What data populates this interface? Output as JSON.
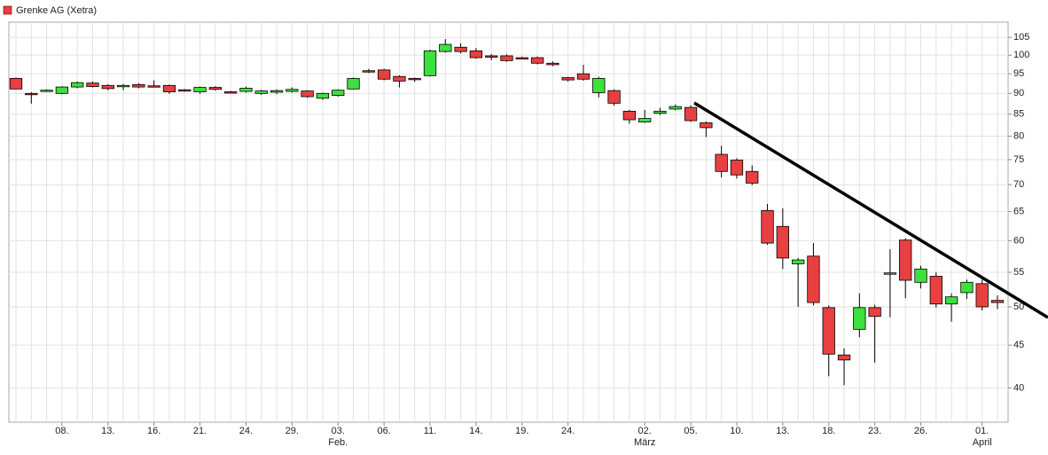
{
  "chart_data": {
    "type": "candlestick",
    "categories": [
      null,
      null,
      null,
      "08.",
      null,
      null,
      "13.",
      null,
      null,
      "16.",
      null,
      null,
      "21.",
      null,
      null,
      "24.",
      null,
      null,
      "29.",
      null,
      null,
      "03.",
      null,
      null,
      "06.",
      null,
      null,
      "11.",
      null,
      null,
      "14.",
      null,
      null,
      "19.",
      null,
      null,
      "24.",
      null,
      null,
      null,
      null,
      "02.",
      null,
      null,
      "05.",
      null,
      null,
      "10.",
      null,
      null,
      "13.",
      null,
      null,
      "18.",
      null,
      null,
      "23.",
      null,
      null,
      "26.",
      null,
      null,
      null,
      "01.",
      null
    ],
    "month_labels": [
      {
        "category": 21,
        "label": "Feb."
      },
      {
        "category": 41,
        "label": "März"
      },
      {
        "category": 63,
        "label": "April"
      }
    ],
    "series": [
      {
        "name": "Grenke AG (Xetra)",
        "color": "#e84040",
        "up_color": "#3ee03e",
        "open": [
          93.8,
          90.0,
          90.6,
          90.0,
          91.6,
          92.6,
          92.0,
          91.7,
          92.2,
          91.9,
          92.0,
          90.9,
          90.4,
          91.5,
          90.4,
          90.5,
          90.0,
          90.3,
          90.5,
          90.6,
          88.8,
          89.5,
          91.1,
          95.8,
          96.0,
          94.3,
          93.8,
          94.5,
          101.0,
          102.2,
          101.2,
          99.8,
          99.8,
          99.3,
          99.3,
          97.8,
          94.0,
          95.0,
          90.2,
          90.7,
          85.7,
          83.2,
          85.2,
          86.2,
          86.6,
          83.0,
          76.1,
          74.9,
          72.6,
          65.2,
          62.4,
          56.3,
          57.5,
          49.9,
          43.8,
          47.0,
          49.9,
          54.9,
          60.1,
          53.5,
          54.4,
          50.4,
          52.0,
          53.3,
          50.9
        ],
        "high": [
          94.0,
          90.3,
          91.0,
          91.8,
          93.0,
          93.0,
          92.3,
          92.4,
          92.6,
          93.3,
          92.2,
          91.1,
          91.7,
          91.8,
          90.6,
          91.7,
          90.9,
          91.0,
          91.5,
          90.8,
          90.2,
          91.0,
          94.0,
          96.3,
          96.3,
          94.6,
          94.0,
          101.5,
          104.5,
          103.3,
          102.0,
          100.3,
          100.2,
          99.6,
          99.6,
          98.3,
          94.2,
          97.4,
          94.2,
          91.0,
          86.0,
          86.0,
          86.5,
          87.3,
          87.1,
          83.3,
          77.9,
          75.3,
          73.8,
          66.4,
          65.6,
          57.2,
          59.6,
          50.2,
          44.6,
          51.9,
          50.3,
          58.6,
          60.4,
          56.0,
          55.0,
          51.9,
          53.9,
          53.9,
          51.6
        ],
        "low": [
          91.0,
          87.5,
          90.4,
          89.8,
          91.3,
          91.5,
          90.8,
          90.8,
          91.3,
          91.5,
          89.9,
          90.4,
          89.9,
          90.7,
          90.0,
          90.2,
          89.6,
          89.8,
          90.2,
          88.9,
          88.4,
          89.2,
          91.0,
          95.2,
          93.3,
          91.5,
          92.9,
          94.3,
          100.7,
          100.5,
          99.0,
          98.6,
          98.2,
          98.9,
          97.5,
          97.0,
          93.0,
          93.2,
          89.0,
          87.0,
          82.8,
          83.0,
          84.8,
          85.9,
          83.2,
          79.8,
          71.4,
          71.2,
          69.9,
          59.3,
          55.5,
          50.0,
          50.2,
          41.3,
          40.3,
          46.0,
          42.9,
          48.6,
          51.2,
          52.6,
          49.9,
          48.0,
          51.1,
          49.5,
          49.7
        ],
        "close": [
          91.1,
          89.8,
          90.8,
          91.6,
          92.7,
          91.7,
          91.2,
          92.0,
          91.6,
          91.8,
          90.4,
          90.8,
          91.5,
          91.0,
          90.3,
          91.3,
          90.6,
          90.7,
          91.0,
          89.2,
          90.0,
          90.8,
          93.8,
          95.6,
          93.6,
          93.1,
          93.7,
          101.2,
          103.0,
          101.0,
          99.3,
          99.6,
          98.5,
          99.2,
          97.8,
          97.4,
          93.4,
          93.6,
          93.8,
          87.6,
          83.7,
          84.0,
          85.7,
          86.8,
          83.5,
          81.9,
          72.6,
          71.9,
          70.3,
          59.6,
          57.2,
          56.9,
          50.6,
          43.9,
          43.2,
          49.9,
          48.7,
          54.9,
          53.8,
          55.5,
          50.4,
          51.4,
          53.5,
          50.0,
          50.6
        ]
      }
    ],
    "ylim": [
      36.4,
      109.5
    ],
    "yticks": [
      40,
      45,
      50,
      55,
      60,
      65,
      70,
      75,
      80,
      85,
      90,
      95,
      100,
      105
    ],
    "log_scale": true,
    "grid": true
  }
}
